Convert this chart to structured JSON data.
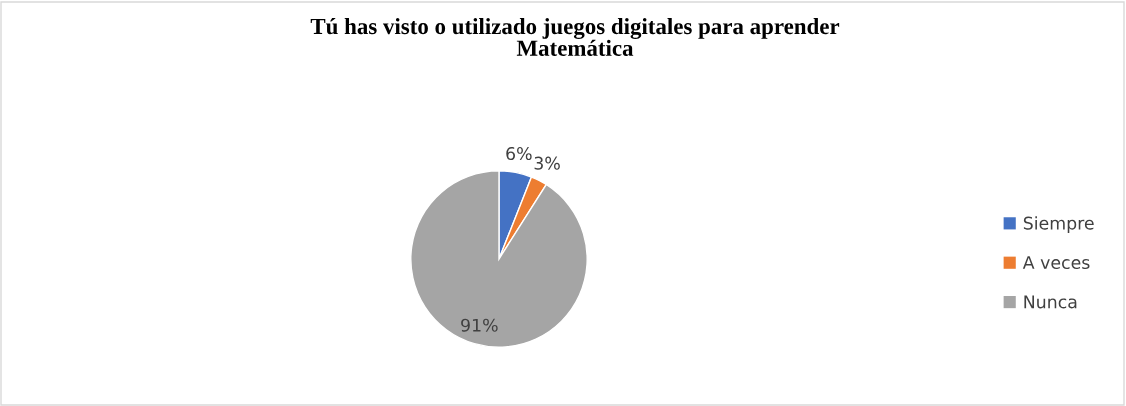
{
  "chart_data": {
    "type": "pie",
    "title": "Tú has visto o utilizado juegos digitales para aprender\nMatemática",
    "categories": [
      "Siempre",
      "A veces",
      "Nunca"
    ],
    "values": [
      6,
      3,
      91
    ],
    "colors": [
      "#4472c4",
      "#ed7d31",
      "#a5a5a5"
    ],
    "value_labels": [
      "6%",
      "3%",
      "91%"
    ],
    "legend": "right"
  }
}
